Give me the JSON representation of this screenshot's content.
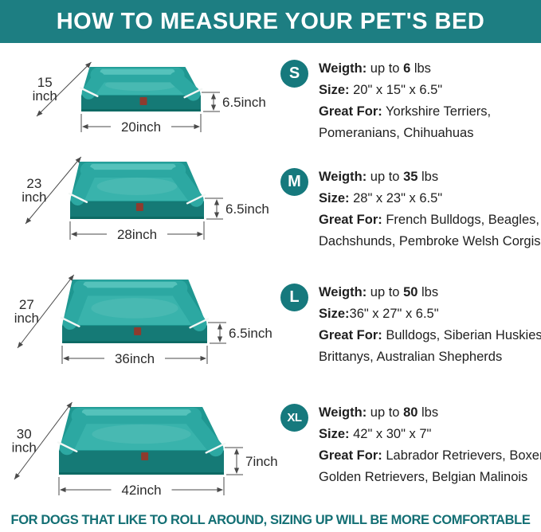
{
  "header": {
    "title": "HOW TO MEASURE YOUR PET'S BED"
  },
  "footer": {
    "text": "FOR DOGS THAT LIKE TO ROLL AROUND, SIZING UP WILL BE MORE COMFORTABLE"
  },
  "colors": {
    "header_bg": "#1d7e82",
    "badge_bg": "#16797d",
    "footer_text": "#136f74",
    "bed_side": "#1f9791",
    "bed_surface": "#39b3ac",
    "bed_bolster": "#2ca8a2",
    "bed_bolster_hi": "#55c2bb",
    "bed_front": "#157a76",
    "bed_front_dark": "#0d6a64",
    "piping": "#f3f7f5",
    "tag": "#8e3b2e",
    "dim_line": "#4a4a4a",
    "dim_text": "#2b2b2b"
  },
  "rows": [
    {
      "size_label": "S",
      "weight_label": "Weigth:",
      "weight_pre": " up to ",
      "weight_value": "6",
      "weight_unit": " lbs",
      "size_field_label": "Size:",
      "size_value": " 20\" x 15\" x 6.5\"",
      "great_for_label": "Great For:",
      "great_for_value": " Yorkshire Terriers, Pomeranians, Chihuahuas",
      "figure": {
        "depth": "15",
        "depth_unit": "inch",
        "height": "6.5inch",
        "width": "20inch"
      }
    },
    {
      "size_label": "M",
      "weight_label": "Weigth:",
      "weight_pre": " up to ",
      "weight_value": "35",
      "weight_unit": " lbs",
      "size_field_label": "Size:",
      "size_value": " 28\" x 23\" x 6.5\"",
      "great_for_label": "Great For:",
      "great_for_value": " French Bulldogs, Beagles, Dachshunds, Pembroke Welsh Corgis",
      "figure": {
        "depth": "23",
        "depth_unit": "inch",
        "height": "6.5inch",
        "width": "28inch"
      }
    },
    {
      "size_label": "L",
      "weight_label": "Weigth:",
      "weight_pre": " up to ",
      "weight_value": "50",
      "weight_unit": " lbs",
      "size_field_label": "Size:",
      "size_value": "36\" x 27\" x 6.5\"",
      "great_for_label": "Great For:",
      "great_for_value": " Bulldogs, Siberian Huskies, Brittanys, Australian Shepherds",
      "figure": {
        "depth": "27",
        "depth_unit": "inch",
        "height": "6.5inch",
        "width": "36inch"
      }
    },
    {
      "size_label": "XL",
      "weight_label": "Weigth:",
      "weight_pre": " up to ",
      "weight_value": "80",
      "weight_unit": " lbs",
      "size_field_label": "Size:",
      "size_value": " 42\" x 30\" x 7\"",
      "great_for_label": "Great For:",
      "great_for_value": " Labrador Retrievers, Boxers, Golden Retrievers, Belgian Malinois",
      "figure": {
        "depth": "30",
        "depth_unit": "inch",
        "height": "7inch",
        "width": "42inch"
      }
    }
  ]
}
